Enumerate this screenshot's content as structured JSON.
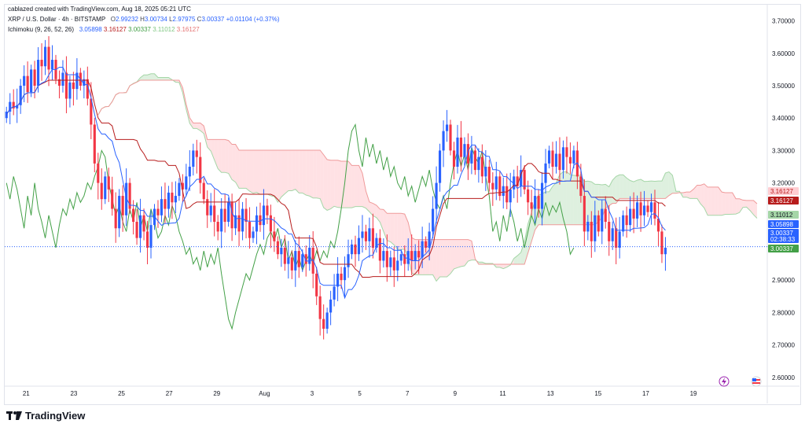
{
  "header": {
    "credit": "cablazed created with TradingView.com, Aug 18, 2025 05:21 UTC"
  },
  "legend": {
    "symbol": "XRP / U.S. Dollar · 4h · BITSTAMP",
    "o_label": "O",
    "o_value": "2.99232",
    "h_label": "H",
    "h_value": "3.00734",
    "l_label": "L",
    "l_value": "2.97975",
    "c_label": "C",
    "c_value": "3.00337",
    "change": "+0.01104 (+0.37%)",
    "indicator": "Ichimoku (9, 26, 52, 26)",
    "ind_values": [
      "3.05898",
      "3.16127",
      "3.00337",
      "3.11012",
      "3.16127"
    ]
  },
  "brand": {
    "name": "TradingView"
  },
  "colors": {
    "bull": "#2962ff",
    "bear": "#f23645",
    "tenkan": "#2962ff",
    "kijun": "#b71c1c",
    "chikou": "#43a047",
    "span_a": "#a5d6a7",
    "span_b": "#ef9a9a",
    "cloud_green": "#c8e6c9",
    "cloud_red": "#ffcdd2"
  },
  "chart_data": {
    "type": "candlestick",
    "title": "XRP / U.S. Dollar · 4h · BITSTAMP",
    "ylim": [
      2.58,
      3.75
    ],
    "y_ticks": [
      "3.70000",
      "3.60000",
      "3.50000",
      "3.40000",
      "3.30000",
      "3.20000",
      "3.10000",
      "3.00000",
      "2.90000",
      "2.80000",
      "2.70000",
      "2.60000"
    ],
    "y_tick_values": [
      3.7,
      3.6,
      3.5,
      3.4,
      3.3,
      3.2,
      3.1,
      3.0,
      2.9,
      2.8,
      2.7,
      2.6
    ],
    "x_ticks": [
      {
        "label": "21",
        "day": 1
      },
      {
        "label": "23",
        "day": 3
      },
      {
        "label": "25",
        "day": 5
      },
      {
        "label": "27",
        "day": 7
      },
      {
        "label": "29",
        "day": 9
      },
      {
        "label": "Aug",
        "day": 11
      },
      {
        "label": "3",
        "day": 13
      },
      {
        "label": "5",
        "day": 15
      },
      {
        "label": "7",
        "day": 17
      },
      {
        "label": "9",
        "day": 19
      },
      {
        "label": "11",
        "day": 21
      },
      {
        "label": "13",
        "day": 23
      },
      {
        "label": "15",
        "day": 25
      },
      {
        "label": "17",
        "day": 27
      },
      {
        "label": "19",
        "day": 29
      }
    ],
    "x_range_days": [
      0.1,
      32.1
    ],
    "candle_closes": [
      3.42,
      3.45,
      3.43,
      3.44,
      3.5,
      3.53,
      3.48,
      3.55,
      3.5,
      3.58,
      3.56,
      3.62,
      3.55,
      3.58,
      3.52,
      3.5,
      3.54,
      3.46,
      3.51,
      3.49,
      3.54,
      3.5,
      3.52,
      3.46,
      3.38,
      3.26,
      3.2,
      3.15,
      3.22,
      3.18,
      3.12,
      3.06,
      3.16,
      3.1,
      3.2,
      3.12,
      3.08,
      3.03,
      3.1,
      3.05,
      3.0,
      3.07,
      3.12,
      3.1,
      3.15,
      3.12,
      3.17,
      3.14,
      3.16,
      3.2,
      3.18,
      3.22,
      3.25,
      3.3,
      3.28,
      3.2,
      3.15,
      3.1,
      3.13,
      3.08,
      3.05,
      3.12,
      3.08,
      3.14,
      3.06,
      3.1,
      3.05,
      3.12,
      3.08,
      3.03,
      3.05,
      3.1,
      3.07,
      3.13,
      3.1,
      3.05,
      3.02,
      2.98,
      3.0,
      2.95,
      2.97,
      2.93,
      2.99,
      2.94,
      2.98,
      2.95,
      3.0,
      2.92,
      2.85,
      2.78,
      2.75,
      2.8,
      2.84,
      2.88,
      2.92,
      2.9,
      2.94,
      2.98,
      3.01,
      2.98,
      3.03,
      3.05,
      3.02,
      3.06,
      3.0,
      3.03,
      2.96,
      2.99,
      2.94,
      2.97,
      2.93,
      2.96,
      2.98,
      2.95,
      2.99,
      2.96,
      2.99,
      2.97,
      3.02,
      3.0,
      3.05,
      3.12,
      3.2,
      3.3,
      3.36,
      3.38,
      3.3,
      3.25,
      3.34,
      3.28,
      3.32,
      3.26,
      3.3,
      3.24,
      3.28,
      3.22,
      3.25,
      3.2,
      3.18,
      3.22,
      3.16,
      3.19,
      3.14,
      3.18,
      3.22,
      3.19,
      3.24,
      3.18,
      3.14,
      3.12,
      3.16,
      3.12,
      3.2,
      3.26,
      3.3,
      3.25,
      3.29,
      3.24,
      3.31,
      3.28,
      3.26,
      3.3,
      3.22,
      3.16,
      3.05,
      3.08,
      3.02,
      3.1,
      3.05,
      3.12,
      3.08,
      3.02,
      3.06,
      3.0,
      3.05,
      3.1,
      3.07,
      3.12,
      3.09,
      3.14,
      3.1,
      3.13,
      3.11,
      3.14,
      3.09,
      3.05,
      2.98,
      3.0
    ],
    "last_price": 3.00337,
    "countdown": "02:38:33",
    "price_tags": [
      {
        "value": 3.16127,
        "text": "3.16127",
        "kind": "spanb_future"
      },
      {
        "value": 3.16127,
        "text": "3.16127",
        "kind": "kijun"
      },
      {
        "value": 3.11012,
        "text": "3.11012",
        "kind": "spana"
      },
      {
        "value": 3.05898,
        "text": "3.05898",
        "kind": "tenkan"
      },
      {
        "value": 3.00337,
        "text": "3.00337",
        "kind": "last"
      },
      {
        "value": 3.00337,
        "text": "3.00337",
        "kind": "chikou"
      }
    ]
  }
}
